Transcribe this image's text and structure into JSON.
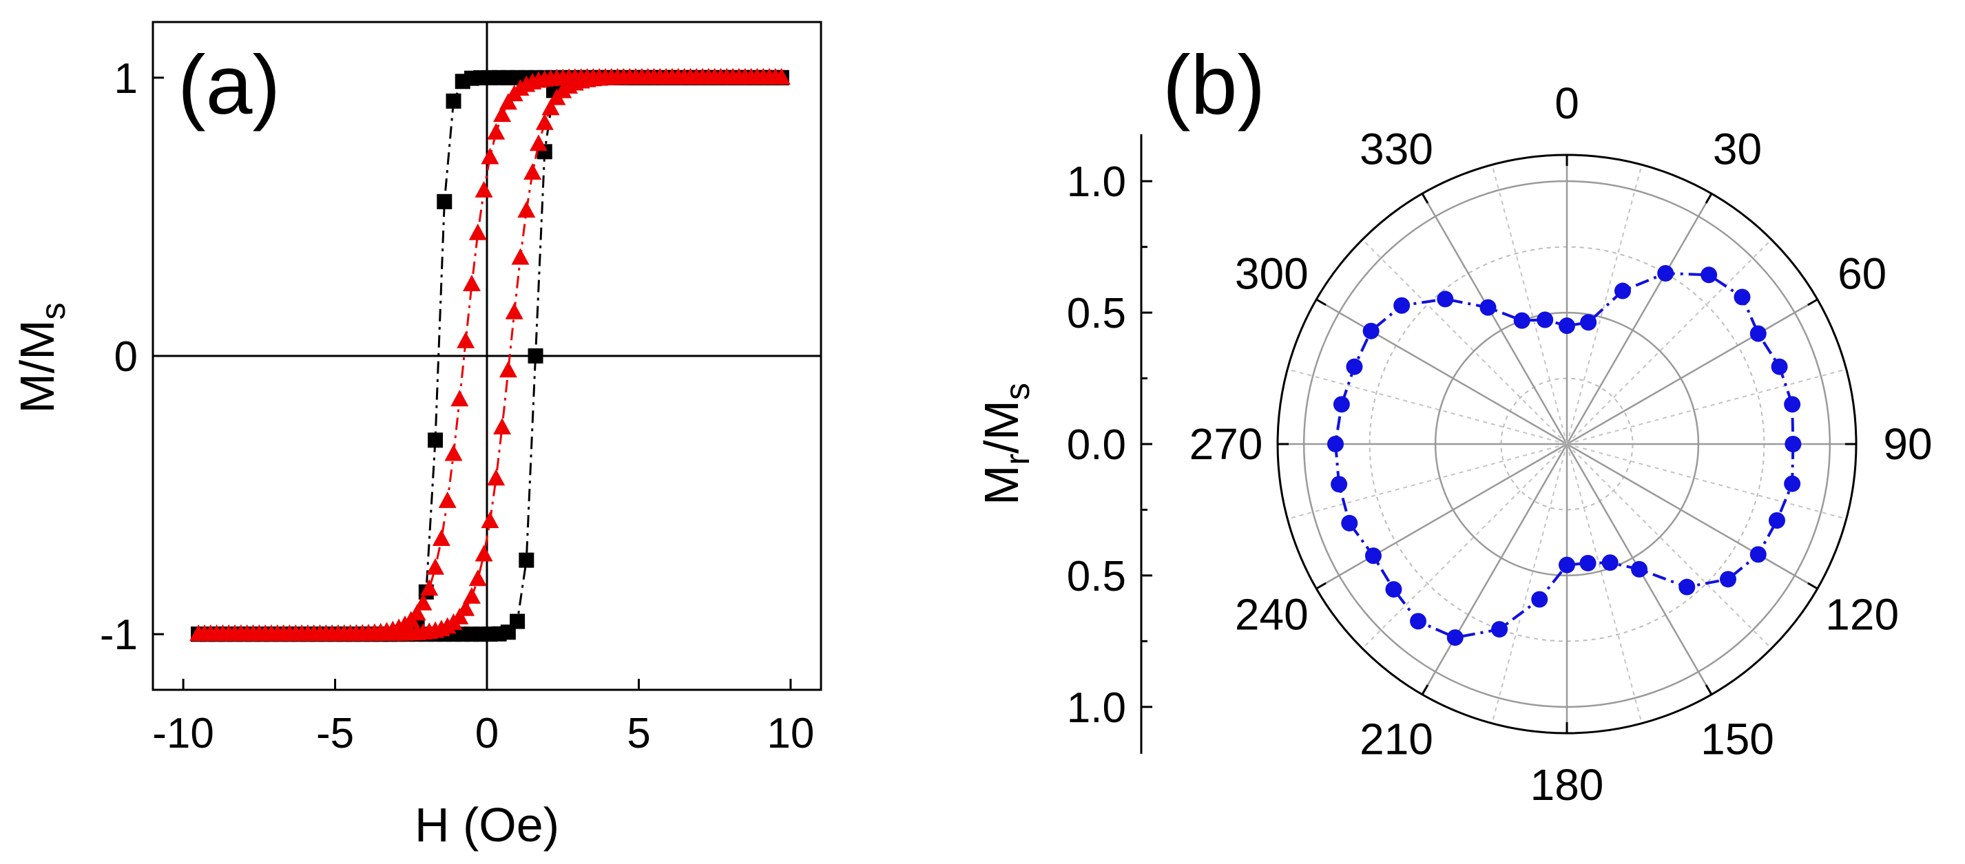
{
  "chart_data": [
    {
      "type": "scatter",
      "panel_label": "(a)",
      "xlabel": "H (Oe)",
      "ylabel_main": "M/M",
      "ylabel_sub": "s",
      "xlim": [
        -11,
        11
      ],
      "ylim": [
        -1.2,
        1.2
      ],
      "xticks": [
        -10,
        -5,
        0,
        5,
        10
      ],
      "xtick_labels": [
        "-10",
        "-5",
        "0",
        "5",
        "10"
      ],
      "yticks": [
        -1,
        0,
        1
      ],
      "ytick_labels": [
        "-1",
        "0",
        "1"
      ],
      "reference_lines": {
        "x": 0,
        "y": 0
      },
      "series": [
        {
          "name": "black squares",
          "marker": "square",
          "color": "#000000",
          "Hc": 1.6,
          "width": 0.32,
          "step": 0.3
        },
        {
          "name": "red triangles",
          "marker": "triangle",
          "color": "#ee0000",
          "Hc": 0.75,
          "width": 0.95,
          "step": 0.2
        }
      ],
      "xrange_data": [
        -9.5,
        9.7
      ]
    },
    {
      "type": "polar",
      "panel_label": "(b)",
      "ylabel_main": "M",
      "ylabel_sub1": "r",
      "ylabel_mid": "/M",
      "ylabel_sub2": "s",
      "rlim": [
        0,
        1.1
      ],
      "radial_ticks": [
        0.5,
        1.0
      ],
      "radial_tick_labels_top": [
        "1.0",
        "0.5",
        "0.0"
      ],
      "radial_tick_labels_bottom": [
        "0.5",
        "1.0"
      ],
      "angle_labels": [
        "0",
        "30",
        "60",
        "90",
        "120",
        "150",
        "180",
        "210",
        "240",
        "270",
        "300",
        "330"
      ],
      "series": [
        {
          "name": "Mr/Ms",
          "color": "#1010e0",
          "angles": [
            0,
            10,
            20,
            30,
            40,
            50,
            60,
            70,
            80,
            90,
            100,
            110,
            120,
            130,
            140,
            150,
            160,
            170,
            180,
            190,
            200,
            210,
            220,
            230,
            240,
            250,
            260,
            270,
            280,
            290,
            300,
            310,
            320,
            330,
            340,
            350
          ],
          "values": [
            0.45,
            0.47,
            0.62,
            0.75,
            0.84,
            0.87,
            0.84,
            0.86,
            0.87,
            0.86,
            0.87,
            0.85,
            0.84,
            0.8,
            0.71,
            0.55,
            0.48,
            0.46,
            0.46,
            0.6,
            0.75,
            0.85,
            0.88,
            0.86,
            0.85,
            0.88,
            0.88,
            0.88,
            0.87,
            0.86,
            0.86,
            0.82,
            0.72,
            0.6,
            0.5,
            0.48
          ]
        }
      ]
    }
  ]
}
